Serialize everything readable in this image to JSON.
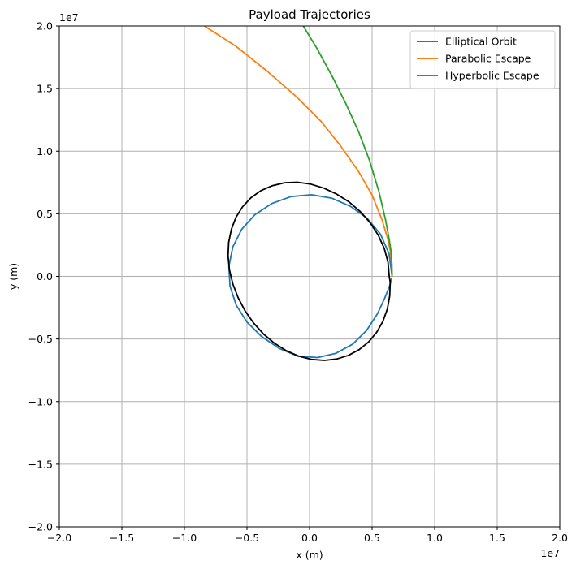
{
  "chart_data": {
    "type": "line",
    "title": "Payload Trajectories",
    "xlabel": "x (m)",
    "ylabel": "y (m)",
    "x_offset_label": "1e7",
    "y_offset_label": "1e7",
    "xlim": [
      -20000000.0,
      20000000.0
    ],
    "ylim": [
      -20000000.0,
      20000000.0
    ],
    "grid": true,
    "legend_position": "top-right",
    "x_ticks": [
      -20000000.0,
      -15000000.0,
      -10000000.0,
      -5000000.0,
      0.0,
      5000000.0,
      10000000.0,
      15000000.0,
      20000000.0
    ],
    "y_ticks": [
      -20000000.0,
      -15000000.0,
      -10000000.0,
      -5000000.0,
      0.0,
      5000000.0,
      10000000.0,
      15000000.0,
      20000000.0
    ],
    "x_tick_labels": [
      "−2.0",
      "−1.5",
      "−1.0",
      "−0.5",
      "0.0",
      "0.5",
      "1.0",
      "1.5",
      "2.0"
    ],
    "y_tick_labels": [
      "−2.0",
      "−1.5",
      "−1.0",
      "−0.5",
      "0.0",
      "0.5",
      "1.0",
      "1.5",
      "2.0"
    ],
    "series": [
      {
        "name": "Elliptical Orbit",
        "color": "#1f77b4",
        "x": [
          6600000,
          6357000,
          5666000,
          4600000,
          3278000,
          1765000,
          150000,
          -1480000,
          -3016000,
          -4368000,
          -5424000,
          -6132000,
          -6450000,
          -6360000,
          -5866000,
          -4998000,
          -3820000,
          -2420000,
          -900000,
          640000,
          2120000,
          3460000,
          4560000,
          5420000,
          6020000,
          6420000,
          6580000
        ],
        "y": [
          0,
          1800000,
          3380000,
          4650000,
          5590000,
          6250000,
          6520000,
          6370000,
          5820000,
          4930000,
          3760000,
          2360000,
          800000,
          -780000,
          -2290000,
          -3650000,
          -4820000,
          -5760000,
          -6380000,
          -6480000,
          -6140000,
          -5400000,
          -4320000,
          -3000000,
          -1720000,
          -700000,
          -100000
        ]
      },
      {
        "name": "Parabolic Escape",
        "color": "#ff7f0e",
        "x": [
          6600000,
          6570000,
          6460000,
          6250000,
          5800000,
          5000000,
          3900000,
          2500000,
          900000,
          -1100000,
          -3400000,
          -5900000,
          -8400000
        ],
        "y": [
          0,
          1000000,
          2000000,
          3000000,
          4500000,
          6500000,
          8400000,
          10400000,
          12400000,
          14400000,
          16400000,
          18400000,
          20000000
        ]
      },
      {
        "name": "Hyperbolic Escape",
        "color": "#2ca02c",
        "x": [
          6600000,
          6580000,
          6510000,
          6360000,
          6080000,
          5540000,
          4780000,
          3900000,
          2900000,
          1800000,
          600000,
          -500000
        ],
        "y": [
          0,
          1000000,
          2000000,
          3000000,
          4500000,
          6800000,
          9300000,
          11600000,
          13800000,
          16000000,
          18200000,
          20000000
        ]
      },
      {
        "color": "#000000",
        "x": [
          6371000,
          6270000,
          5974000,
          5495000,
          4852000,
          4068000,
          3168000,
          2185000,
          1150000,
          100000,
          -960000,
          -1990000,
          -2970000,
          -3880000,
          -4680000,
          -5350000,
          -5880000,
          -6250000,
          -6460000,
          -6510000,
          -6400000,
          -6130000,
          -5710000,
          -5150000,
          -4470000,
          -3680000,
          -2800000,
          -1850000,
          -860000,
          160000,
          1180000,
          2170000,
          3110000,
          3970000,
          4730000,
          5370000,
          5870000,
          6220000,
          6410000,
          6450000,
          6371000
        ],
        "y": [
          0,
          1130000,
          2230000,
          3290000,
          4280000,
          5170000,
          5940000,
          6570000,
          7050000,
          7370000,
          7520000,
          7480000,
          7250000,
          6850000,
          6280000,
          5560000,
          4710000,
          3760000,
          2730000,
          1640000,
          520000,
          -600000,
          -1700000,
          -2760000,
          -3730000,
          -4600000,
          -5340000,
          -5940000,
          -6370000,
          -6630000,
          -6710000,
          -6600000,
          -6310000,
          -5850000,
          -5230000,
          -4460000,
          -3580000,
          -2600000,
          -1550000,
          -460000,
          0
        ]
      }
    ]
  }
}
